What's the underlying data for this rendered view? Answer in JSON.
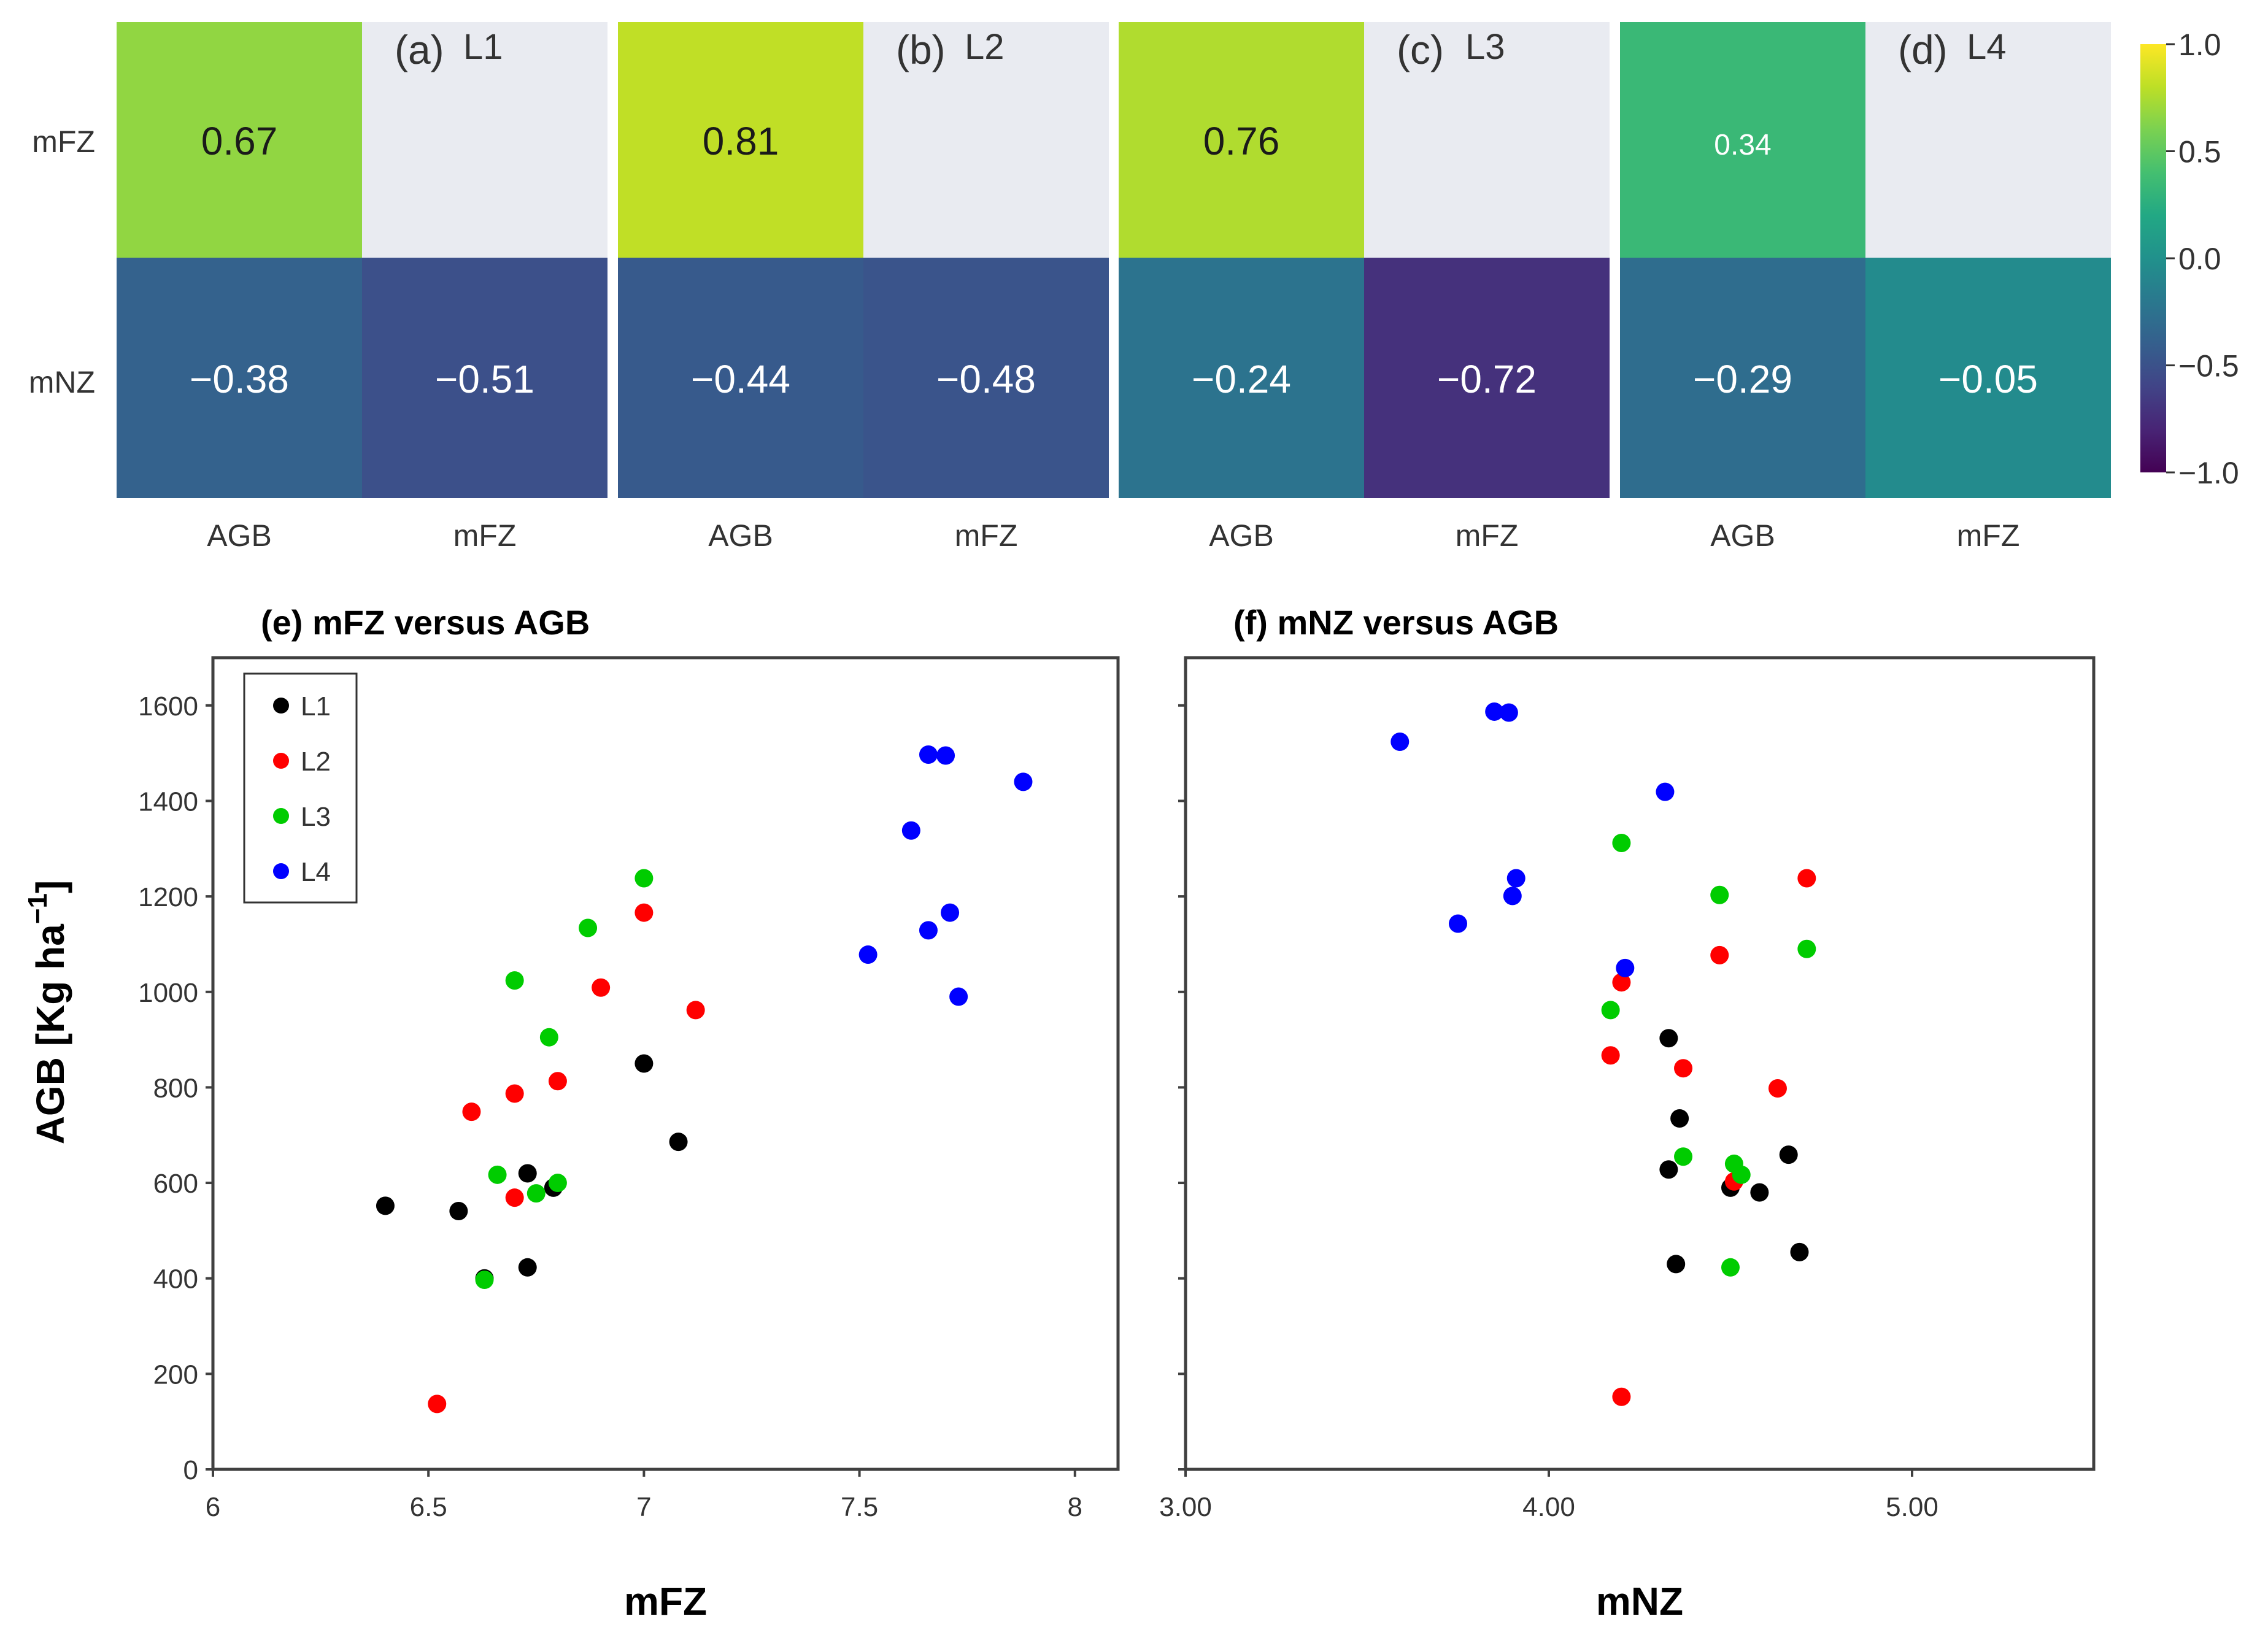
{
  "chart_data": [
    {
      "type": "heatmap",
      "panel": "(a)",
      "title": "L1",
      "row_labels": [
        "mFZ",
        "mNZ"
      ],
      "col_labels": [
        "AGB",
        "mFZ"
      ],
      "values": [
        [
          0.67,
          null
        ],
        [
          -0.38,
          -0.51
        ]
      ],
      "value_labels": [
        [
          "0.67",
          ""
        ],
        [
          "−0.38",
          "−0.51"
        ]
      ]
    },
    {
      "type": "heatmap",
      "panel": "(b)",
      "title": "L2",
      "row_labels": [
        "mFZ",
        "mNZ"
      ],
      "col_labels": [
        "AGB",
        "mFZ"
      ],
      "values": [
        [
          0.81,
          null
        ],
        [
          -0.44,
          -0.48
        ]
      ],
      "value_labels": [
        [
          "0.81",
          ""
        ],
        [
          "−0.44",
          "−0.48"
        ]
      ]
    },
    {
      "type": "heatmap",
      "panel": "(c)",
      "title": "L3",
      "row_labels": [
        "mFZ",
        "mNZ"
      ],
      "col_labels": [
        "AGB",
        "mFZ"
      ],
      "values": [
        [
          0.76,
          null
        ],
        [
          -0.24,
          -0.72
        ]
      ],
      "value_labels": [
        [
          "0.76",
          ""
        ],
        [
          "−0.24",
          "−0.72"
        ]
      ]
    },
    {
      "type": "heatmap",
      "panel": "(d)",
      "title": "L4",
      "row_labels": [
        "mFZ",
        "mNZ"
      ],
      "col_labels": [
        "AGB",
        "mFZ"
      ],
      "values": [
        [
          0.34,
          null
        ],
        [
          -0.29,
          -0.05
        ]
      ],
      "value_labels": [
        [
          "0.34",
          ""
        ],
        [
          "−0.29",
          "−0.05"
        ]
      ]
    },
    {
      "type": "colorbar",
      "range": [
        -1.0,
        1.0
      ],
      "ticks": [
        1.0,
        0.5,
        0.0,
        -0.5,
        -1.0
      ],
      "tick_labels": [
        "1.0",
        "0.5",
        "0.0",
        "−0.5",
        "−1.0"
      ],
      "colormap": "viridis"
    },
    {
      "type": "scatter",
      "title": "(e) mFZ versus AGB",
      "xlabel": "mFZ",
      "ylabel": "AGB [Kg ha",
      "ylabel_sup": "−1",
      "ylabel_end": "]",
      "xlim": [
        6,
        8.1
      ],
      "ylim": [
        0,
        1700
      ],
      "xticks": [
        6,
        6.5,
        7,
        7.5,
        8
      ],
      "xtick_labels": [
        "6",
        "6.5",
        "7",
        "7.5",
        "8"
      ],
      "yticks": [
        0,
        200,
        400,
        600,
        800,
        1000,
        1200,
        1400,
        1600
      ],
      "ytick_labels": [
        "0",
        "200",
        "400",
        "600",
        "800",
        "1000",
        "1200",
        "1400",
        "1600"
      ],
      "legend_position": "top-left",
      "series": [
        {
          "name": "L1",
          "color": "#000000",
          "points": [
            [
              6.4,
              552
            ],
            [
              6.57,
              541
            ],
            [
              6.63,
              400
            ],
            [
              6.73,
              423
            ],
            [
              6.73,
              620
            ],
            [
              6.79,
              590
            ],
            [
              7.0,
              850
            ],
            [
              7.08,
              686
            ]
          ]
        },
        {
          "name": "L2",
          "color": "#ff0000",
          "points": [
            [
              6.52,
              137
            ],
            [
              6.6,
              749
            ],
            [
              6.7,
              787
            ],
            [
              6.7,
              569
            ],
            [
              6.8,
              813
            ],
            [
              6.9,
              1009
            ],
            [
              7.0,
              1166
            ],
            [
              7.12,
              962
            ]
          ]
        },
        {
          "name": "L3",
          "color": "#00cc00",
          "points": [
            [
              6.63,
              397
            ],
            [
              6.66,
              617
            ],
            [
              6.7,
              1024
            ],
            [
              6.75,
              578
            ],
            [
              6.78,
              905
            ],
            [
              6.8,
              600
            ],
            [
              6.87,
              1134
            ],
            [
              7.0,
              1238
            ]
          ]
        },
        {
          "name": "L4",
          "color": "#0000ff",
          "points": [
            [
              7.52,
              1078
            ],
            [
              7.62,
              1338
            ],
            [
              7.66,
              1497
            ],
            [
              7.66,
              1129
            ],
            [
              7.7,
              1495
            ],
            [
              7.71,
              1166
            ],
            [
              7.73,
              990
            ],
            [
              7.88,
              1440
            ]
          ]
        }
      ]
    },
    {
      "type": "scatter",
      "title": "(f) mNZ versus AGB",
      "xlabel": "mNZ",
      "xlim": [
        3.0,
        5.5
      ],
      "ylim": [
        0,
        1700
      ],
      "xticks": [
        3.0,
        4.0,
        5.0
      ],
      "xtick_labels": [
        "3.00",
        "4.00",
        "5.00"
      ],
      "yticks": [
        0,
        200,
        400,
        600,
        800,
        1000,
        1200,
        1400,
        1600
      ],
      "ytick_labels": [],
      "series": [
        {
          "name": "L1",
          "color": "#000000",
          "points": [
            [
              4.33,
              903
            ],
            [
              4.36,
              735
            ],
            [
              4.33,
              628
            ],
            [
              4.35,
              430
            ],
            [
              4.5,
              590
            ],
            [
              4.58,
              580
            ],
            [
              4.66,
              659
            ],
            [
              4.69,
              455
            ]
          ]
        },
        {
          "name": "L2",
          "color": "#ff0000",
          "points": [
            [
              4.2,
              152
            ],
            [
              4.2,
              1020
            ],
            [
              4.17,
              867
            ],
            [
              4.37,
              840
            ],
            [
              4.47,
              1077
            ],
            [
              4.63,
              798
            ],
            [
              4.51,
              603
            ],
            [
              4.71,
              1238
            ]
          ]
        },
        {
          "name": "L3",
          "color": "#00cc00",
          "points": [
            [
              4.2,
              1312
            ],
            [
              4.17,
              962
            ],
            [
              4.37,
              655
            ],
            [
              4.47,
              1203
            ],
            [
              4.51,
              640
            ],
            [
              4.53,
              617
            ],
            [
              4.5,
              423
            ],
            [
              4.71,
              1090
            ]
          ]
        },
        {
          "name": "L4",
          "color": "#0000ff",
          "points": [
            [
              3.59,
              1524
            ],
            [
              3.75,
              1143
            ],
            [
              3.85,
              1587
            ],
            [
              3.89,
              1585
            ],
            [
              3.9,
              1201
            ],
            [
              3.91,
              1238
            ],
            [
              4.21,
              1050
            ],
            [
              4.32,
              1419
            ]
          ]
        }
      ]
    }
  ]
}
